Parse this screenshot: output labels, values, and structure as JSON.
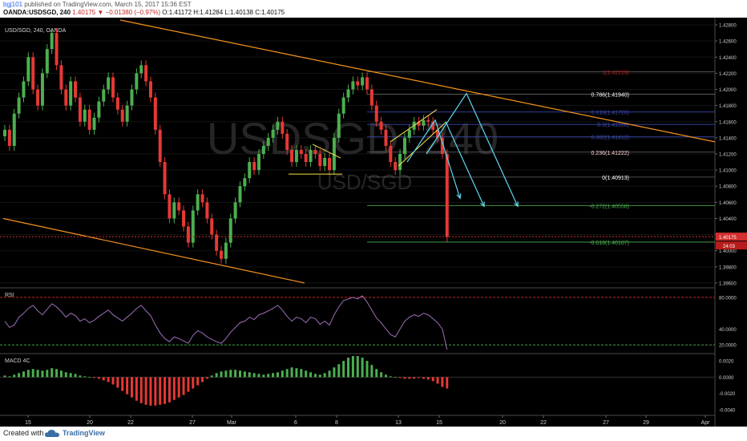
{
  "header": {
    "author": "bgj101",
    "published": "published on TradingView.com, March 15, 2017 15:36 EST",
    "symbol": "OANDA:USDSGD, 240",
    "change": "1.40175 ▼ −0.01380 (−0.97%)",
    "ohlc": "O:1.41172  H:1.41284  L:1.40138  C:1.40175"
  },
  "footer": {
    "created": "Created with",
    "brand": "TradingView"
  },
  "chart_data": {
    "type": "candlestick",
    "title": "USD/SGD, 240, OANDA",
    "watermark_symbol": "USDSGD, 240",
    "watermark_desc": "USD/SGD",
    "ylim": [
      1.3955,
      1.4285
    ],
    "y_ticks": [
      "1.42800",
      "1.42600",
      "1.42400",
      "1.42200",
      "1.42000",
      "1.41800",
      "1.41600",
      "1.41400",
      "1.41200",
      "1.41000",
      "1.40800",
      "1.40600",
      "1.40400",
      "1.40200",
      "1.40000",
      "1.39800",
      "1.39600"
    ],
    "x_ticks": [
      "15",
      "20",
      "22",
      "27",
      "Mar",
      "6",
      "8",
      "13",
      "15",
      "20",
      "22",
      "27",
      "29",
      "Apr"
    ],
    "last_price": "1.40175",
    "countdown": "24:03",
    "colors": {
      "up": "#4caf50",
      "down": "#e53935",
      "trend": "#f7931a",
      "fib": "#888888",
      "arrow": "#5fd7f0",
      "pattern": "#f5e447"
    },
    "fib_levels": [
      {
        "label": "1(1.42219)",
        "value": 1.42219,
        "color": "#b71c1c"
      },
      {
        "label": "0.786(1.41940)",
        "value": 1.4194,
        "color": "#ffffff"
      },
      {
        "label": "0.618(1.41720)",
        "value": 1.4172,
        "color": "#3949ab"
      },
      {
        "label": "0.5(1.41566)",
        "value": 1.41566,
        "color": "#3949ab"
      },
      {
        "label": "0.382(1.41412)",
        "value": 1.41412,
        "color": "#3949ab"
      },
      {
        "label": "0.236(1.41222)",
        "value": 1.41222,
        "color": "#ffcdd2"
      },
      {
        "label": "0(1.40913)",
        "value": 1.40913,
        "color": "#ffffff"
      },
      {
        "label": "-0.272(1.40558)",
        "value": 1.40558,
        "color": "#4caf50"
      },
      {
        "label": "-0.618(1.40107)",
        "value": 1.40107,
        "color": "#4caf50"
      }
    ],
    "candles": [
      1.415,
      1.413,
      1.417,
      1.419,
      1.421,
      1.424,
      1.42,
      1.418,
      1.422,
      1.425,
      1.427,
      1.423,
      1.42,
      1.418,
      1.421,
      1.419,
      1.416,
      1.4175,
      1.415,
      1.4165,
      1.4185,
      1.42,
      1.4215,
      1.419,
      1.4175,
      1.416,
      1.418,
      1.42,
      1.422,
      1.423,
      1.421,
      1.419,
      1.415,
      1.411,
      1.407,
      1.404,
      1.406,
      1.405,
      1.403,
      1.401,
      1.405,
      1.407,
      1.406,
      1.404,
      1.402,
      1.4,
      1.399,
      1.401,
      1.404,
      1.406,
      1.408,
      1.409,
      1.411,
      1.41,
      1.412,
      1.413,
      1.414,
      1.415,
      1.416,
      1.4145,
      1.4125,
      1.411,
      1.4125,
      1.412,
      1.411,
      1.4125,
      1.412,
      1.4105,
      1.4115,
      1.41,
      1.414,
      1.417,
      1.419,
      1.42,
      1.421,
      1.4205,
      1.4215,
      1.42,
      1.418,
      1.416,
      1.415,
      1.413,
      1.411,
      1.41,
      1.412,
      1.414,
      1.415,
      1.416,
      1.4155,
      1.4162,
      1.416,
      1.415,
      1.414,
      1.412,
      1.4017
    ],
    "rsi": {
      "label": "RSI",
      "ylim": [
        10,
        90
      ],
      "y_ticks": [
        "80.0000",
        "40.0000",
        "20.0000"
      ],
      "values": [
        50,
        42,
        45,
        55,
        60,
        66,
        70,
        63,
        58,
        65,
        72,
        68,
        62,
        55,
        60,
        57,
        50,
        53,
        48,
        51,
        56,
        60,
        64,
        58,
        54,
        50,
        55,
        60,
        66,
        70,
        63,
        57,
        45,
        35,
        28,
        24,
        30,
        28,
        25,
        22,
        32,
        38,
        35,
        30,
        27,
        24,
        22,
        28,
        36,
        42,
        48,
        50,
        55,
        52,
        58,
        60,
        63,
        66,
        70,
        64,
        56,
        50,
        55,
        53,
        48,
        55,
        53,
        46,
        50,
        45,
        58,
        68,
        76,
        78,
        80,
        78,
        82,
        74,
        64,
        54,
        48,
        40,
        33,
        30,
        40,
        50,
        55,
        58,
        56,
        60,
        58,
        53,
        48,
        40,
        14
      ]
    },
    "macd": {
      "label": "MACD 4C",
      "ylim": [
        -0.0046,
        0.0027
      ],
      "y_ticks": [
        "0.0020",
        "0.0000",
        "-0.0020",
        "-0.0040"
      ],
      "values": [
        0.0002,
        0.0001,
        0.0003,
        0.0005,
        0.0007,
        0.0009,
        0.001,
        0.0009,
        0.0008,
        0.0009,
        0.0011,
        0.001,
        0.0008,
        0.0006,
        0.0005,
        0.0004,
        0.0002,
        0.0001,
        0.0,
        -0.0001,
        -0.0002,
        -0.0004,
        -0.0006,
        -0.0009,
        -0.0013,
        -0.0017,
        -0.0021,
        -0.0025,
        -0.0029,
        -0.0032,
        -0.0034,
        -0.0035,
        -0.0035,
        -0.0034,
        -0.0033,
        -0.0031,
        -0.0028,
        -0.0025,
        -0.0022,
        -0.0018,
        -0.0014,
        -0.001,
        -0.0006,
        -0.0002,
        0.0002,
        0.0005,
        0.0007,
        0.0008,
        0.0009,
        0.0009,
        0.0008,
        0.0007,
        0.0006,
        0.0005,
        0.0004,
        0.0003,
        0.0004,
        0.0005,
        0.0006,
        0.0008,
        0.001,
        0.0012,
        0.0011,
        0.001,
        0.0008,
        0.0006,
        0.0004,
        0.0003,
        0.0005,
        0.0008,
        0.0012,
        0.0016,
        0.002,
        0.0024,
        0.0026,
        0.0026,
        0.0024,
        0.002,
        0.0015,
        0.001,
        0.0006,
        0.0003,
        0.0001,
        0.0,
        -0.0001,
        -0.0002,
        -0.0002,
        -0.0002,
        -0.0001,
        -0.0002,
        -0.0003,
        -0.0005,
        -0.0008,
        -0.0012,
        -0.0014
      ]
    }
  }
}
